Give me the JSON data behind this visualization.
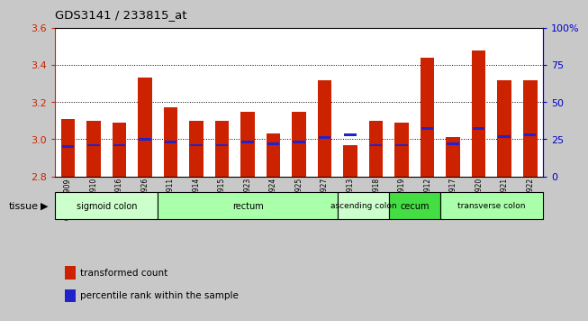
{
  "title": "GDS3141 / 233815_at",
  "samples": [
    "GSM234909",
    "GSM234910",
    "GSM234916",
    "GSM234926",
    "GSM234911",
    "GSM234914",
    "GSM234915",
    "GSM234923",
    "GSM234924",
    "GSM234925",
    "GSM234927",
    "GSM234913",
    "GSM234918",
    "GSM234919",
    "GSM234912",
    "GSM234917",
    "GSM234920",
    "GSM234921",
    "GSM234922"
  ],
  "bar_values": [
    3.11,
    3.1,
    3.09,
    3.33,
    3.17,
    3.1,
    3.1,
    3.15,
    3.03,
    3.15,
    3.32,
    2.97,
    3.1,
    3.09,
    3.44,
    3.01,
    3.48,
    3.32,
    3.32
  ],
  "pct_ranks": [
    20,
    21,
    21,
    25,
    23,
    21,
    21,
    23,
    22,
    23,
    26,
    28,
    21,
    21,
    32,
    22,
    32,
    27,
    28
  ],
  "ymin": 2.8,
  "ymax": 3.6,
  "yticks": [
    2.8,
    3.0,
    3.2,
    3.4,
    3.6
  ],
  "y2ticks": [
    0,
    25,
    50,
    75,
    100
  ],
  "y2ticklabels": [
    "0",
    "25",
    "50",
    "75",
    "100%"
  ],
  "bar_color": "#cc2200",
  "percentile_color": "#2222cc",
  "tissue_groups": [
    {
      "label": "sigmoid colon",
      "start": 0,
      "end": 4,
      "color": "#ccffcc"
    },
    {
      "label": "rectum",
      "start": 4,
      "end": 11,
      "color": "#aaffaa"
    },
    {
      "label": "ascending colon",
      "start": 11,
      "end": 13,
      "color": "#ccffcc"
    },
    {
      "label": "cecum",
      "start": 13,
      "end": 15,
      "color": "#44dd44"
    },
    {
      "label": "transverse colon",
      "start": 15,
      "end": 19,
      "color": "#aaffaa"
    }
  ],
  "axis_color_left": "#cc2200",
  "axis_color_right": "#0000cc",
  "fig_bg": "#c8c8c8",
  "plot_bg": "#ffffff"
}
